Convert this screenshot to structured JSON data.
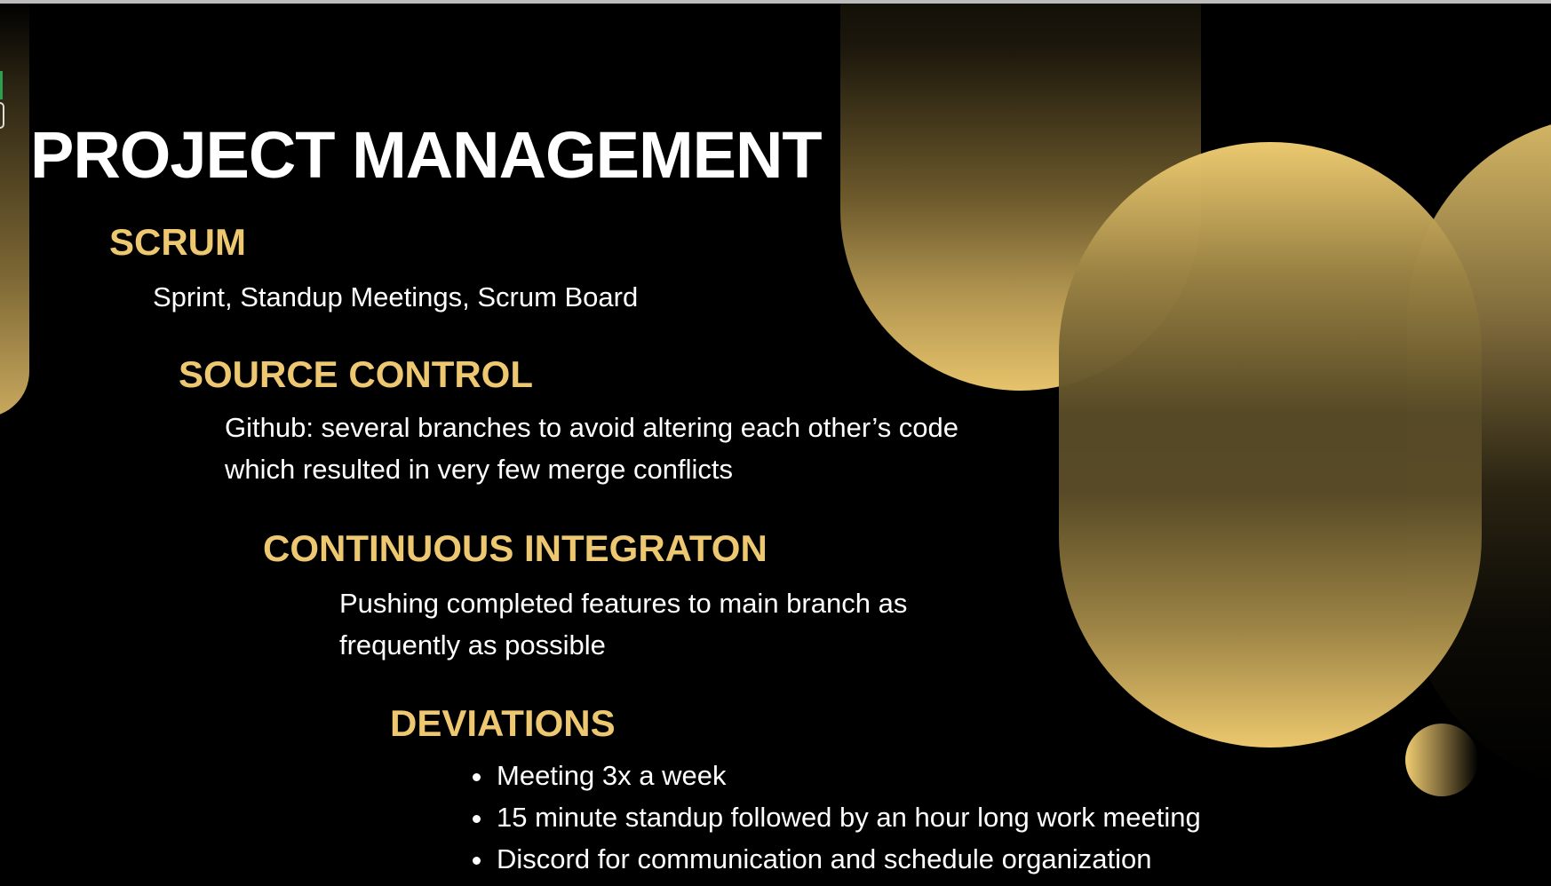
{
  "slide": {
    "title": "PROJECT MANAGEMENT",
    "sections": [
      {
        "heading": "SCRUM",
        "lines": [
          "Sprint, Standup Meetings, Scrum Board"
        ]
      },
      {
        "heading": "SOURCE CONTROL",
        "lines": [
          "Github: several branches to avoid altering each other’s code",
          "which resulted in very few merge conflicts"
        ]
      },
      {
        "heading": "CONTINUOUS INTEGRATON",
        "lines": [
          "Pushing completed features to main branch as",
          "frequently as possible"
        ]
      },
      {
        "heading": "DEVIATIONS",
        "bullets": [
          "Meeting 3x a week",
          "15 minute standup followed by an hour long work meeting",
          "Discord for communication and schedule organization"
        ]
      }
    ]
  },
  "colors": {
    "background": "#000000",
    "heading": "#eec871",
    "text": "#ffffff",
    "accent_gold": "#f0cd72"
  }
}
